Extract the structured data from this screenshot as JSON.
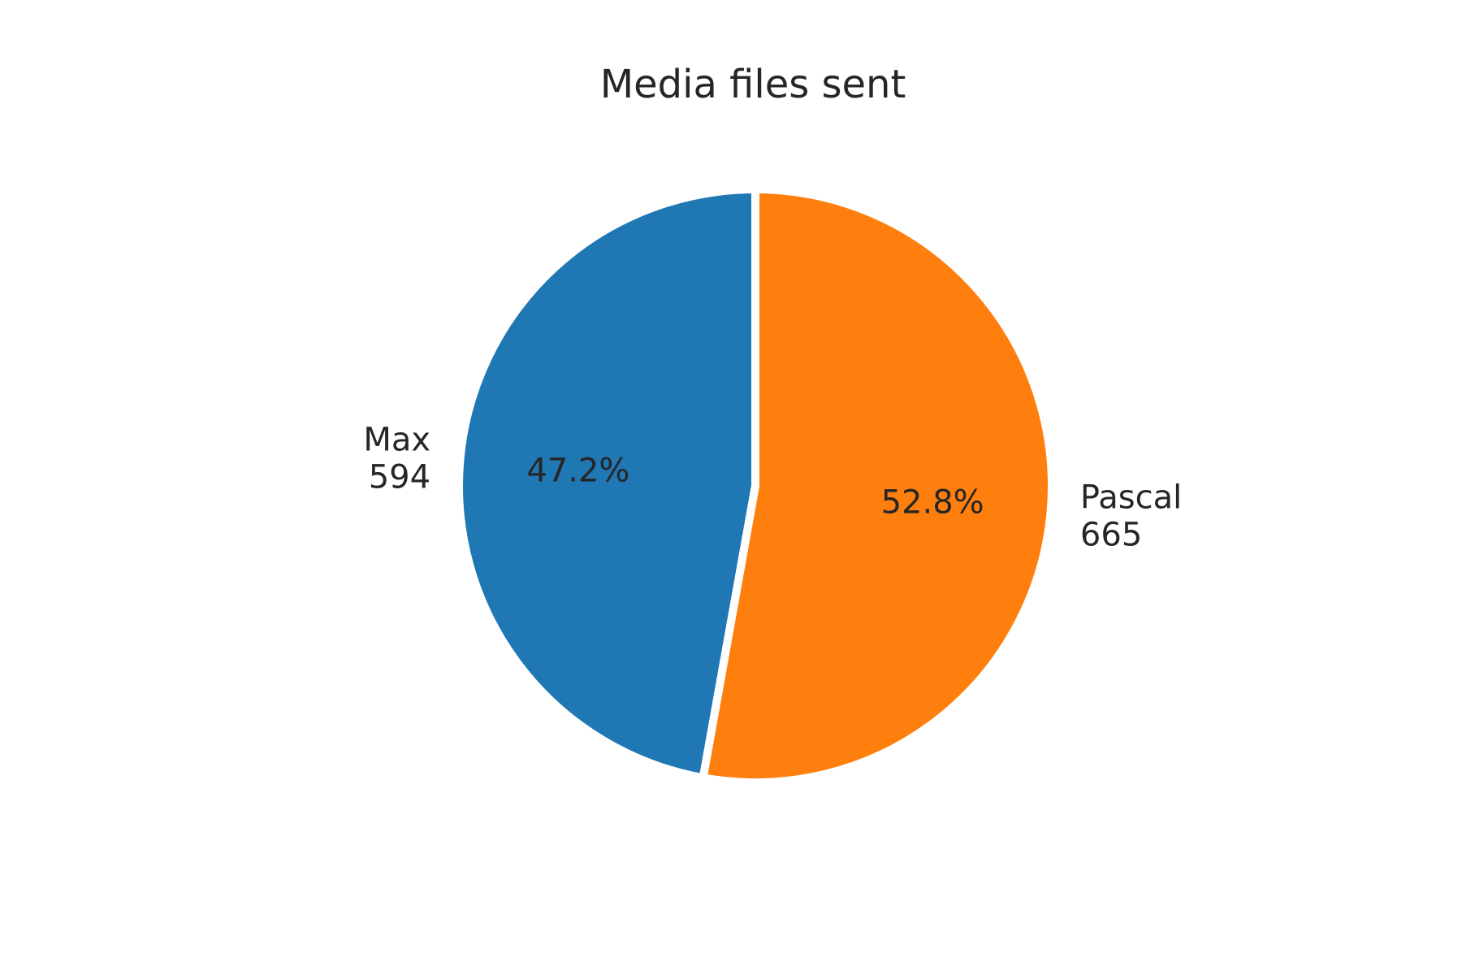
{
  "chart_data": {
    "type": "pie",
    "title": "Media files sent",
    "slices": [
      {
        "label": "Max",
        "value": 594,
        "percent_label": "47.2%",
        "color": "#1f77b4"
      },
      {
        "label": "Pascal",
        "value": 665,
        "percent_label": "52.8%",
        "color": "#ff7f0e"
      }
    ],
    "start": "top, counter-clockwise",
    "separator_color": "#ffffff"
  }
}
